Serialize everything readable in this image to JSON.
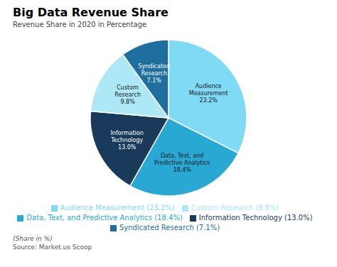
{
  "chart_data": {
    "type": "pie",
    "title": "Big Data Revenue Share",
    "subtitle": "Revenue Share in 2020 in Percentage",
    "categories": [
      "Audience Measurement (23.2%)",
      "Data, Text, and Predictive Analytics (18.4%)",
      "Information Technology (13.0%)",
      "Custom Research (9.8%)",
      "Syndicated Research (7.1%)"
    ],
    "values": [
      23.2,
      18.4,
      13.0,
      9.8,
      7.1
    ],
    "value_labels": [
      "Audience\nMeasurement\n23.2%",
      "Data, Text, and\nPredictive Analytics\n18.4%",
      "Information\nTechnology\n13.0%",
      "Custom\nResearch\n9.8%",
      "Syndicated\nResearch\n7.1%"
    ],
    "colors": [
      "#7FDBF5",
      "#29A8D4",
      "#1A3A5C",
      "#ADE8F7",
      "#1E6FA0"
    ],
    "data_labels": true,
    "legend": "bottom",
    "annotations": [
      "(Share in %)",
      "Source: Market.us Scoop"
    ]
  }
}
